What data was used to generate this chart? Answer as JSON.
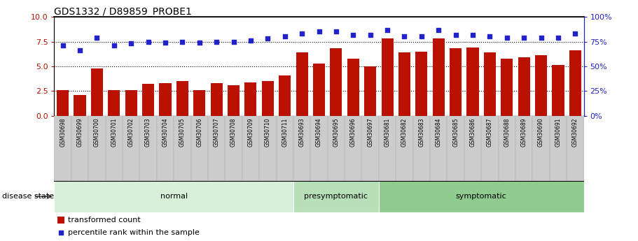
{
  "title": "GDS1332 / D89859_PROBE1",
  "samples": [
    "GSM30698",
    "GSM30699",
    "GSM30700",
    "GSM30701",
    "GSM30702",
    "GSM30703",
    "GSM30704",
    "GSM30705",
    "GSM30706",
    "GSM30707",
    "GSM30708",
    "GSM30709",
    "GSM30710",
    "GSM30711",
    "GSM30693",
    "GSM30694",
    "GSM30695",
    "GSM30696",
    "GSM30697",
    "GSM30681",
    "GSM30682",
    "GSM30683",
    "GSM30684",
    "GSM30685",
    "GSM30686",
    "GSM30687",
    "GSM30688",
    "GSM30689",
    "GSM30690",
    "GSM30691",
    "GSM30692"
  ],
  "bar_values": [
    2.6,
    2.1,
    4.8,
    2.6,
    2.6,
    3.2,
    3.3,
    3.5,
    2.6,
    3.3,
    3.1,
    3.4,
    3.5,
    4.1,
    6.4,
    5.3,
    6.8,
    5.8,
    5.0,
    7.8,
    6.4,
    6.5,
    7.8,
    6.8,
    6.9,
    6.4,
    5.8,
    5.9,
    6.1,
    5.1,
    6.6
  ],
  "dot_values": [
    71,
    66,
    79,
    71,
    73,
    75,
    74,
    75,
    74,
    75,
    75,
    76,
    78,
    80,
    83,
    85,
    85,
    82,
    82,
    87,
    80,
    80,
    87,
    82,
    82,
    80,
    79,
    79,
    79,
    79,
    83
  ],
  "groups": [
    {
      "label": "normal",
      "start": 0,
      "end": 14,
      "color": "#d8f0d8"
    },
    {
      "label": "presymptomatic",
      "start": 14,
      "end": 19,
      "color": "#b8e0b8"
    },
    {
      "label": "symptomatic",
      "start": 19,
      "end": 31,
      "color": "#90cc90"
    }
  ],
  "bar_color": "#bb1100",
  "dot_color": "#2222cc",
  "ylim_left": [
    0,
    10
  ],
  "ylim_right": [
    0,
    100
  ],
  "yticks_left": [
    0,
    2.5,
    5.0,
    7.5,
    10
  ],
  "yticks_right": [
    0,
    25,
    50,
    75,
    100
  ],
  "hlines": [
    2.5,
    5.0,
    7.5
  ],
  "disease_state_label": "disease state",
  "legend_bar": "transformed count",
  "legend_dot": "percentile rank within the sample"
}
